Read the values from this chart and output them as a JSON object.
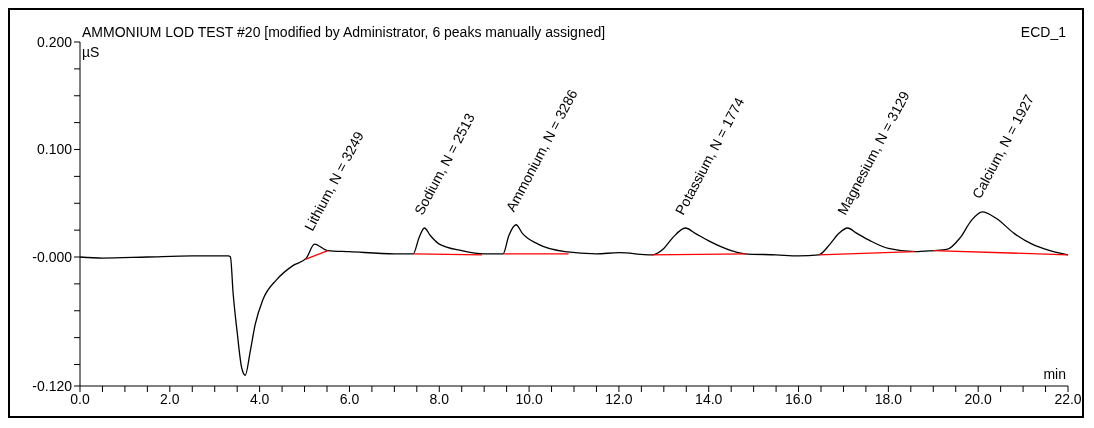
{
  "chart_data": {
    "type": "line",
    "title": "AMMONIUM LOD TEST #20 [modified by Administrator, 6 peaks manually assigned]",
    "subtitle": "ECD_1",
    "xlabel": "min",
    "ylabel": "µS",
    "xlim": [
      0,
      22
    ],
    "ylim": [
      -0.12,
      0.2
    ],
    "xticks": [
      {
        "value": 0,
        "label": "0.0"
      },
      {
        "value": 0.5,
        "label": null
      },
      {
        "value": 1,
        "label": null
      },
      {
        "value": 1.5,
        "label": null
      },
      {
        "value": 2,
        "label": "2.0"
      },
      {
        "value": 2.5,
        "label": null
      },
      {
        "value": 3,
        "label": null
      },
      {
        "value": 3.5,
        "label": null
      },
      {
        "value": 4,
        "label": "4.0"
      },
      {
        "value": 4.5,
        "label": null
      },
      {
        "value": 5,
        "label": null
      },
      {
        "value": 5.5,
        "label": null
      },
      {
        "value": 6,
        "label": "6.0"
      },
      {
        "value": 6.5,
        "label": null
      },
      {
        "value": 7,
        "label": null
      },
      {
        "value": 7.5,
        "label": null
      },
      {
        "value": 8,
        "label": "8.0"
      },
      {
        "value": 8.5,
        "label": null
      },
      {
        "value": 9,
        "label": null
      },
      {
        "value": 9.5,
        "label": null
      },
      {
        "value": 10,
        "label": "10.0"
      },
      {
        "value": 10.5,
        "label": null
      },
      {
        "value": 11,
        "label": null
      },
      {
        "value": 11.5,
        "label": null
      },
      {
        "value": 12,
        "label": "12.0"
      },
      {
        "value": 12.5,
        "label": null
      },
      {
        "value": 13,
        "label": null
      },
      {
        "value": 13.5,
        "label": null
      },
      {
        "value": 14,
        "label": "14.0"
      },
      {
        "value": 14.5,
        "label": null
      },
      {
        "value": 15,
        "label": null
      },
      {
        "value": 15.5,
        "label": null
      },
      {
        "value": 16,
        "label": "16.0"
      },
      {
        "value": 16.5,
        "label": null
      },
      {
        "value": 17,
        "label": null
      },
      {
        "value": 17.5,
        "label": null
      },
      {
        "value": 18,
        "label": "18.0"
      },
      {
        "value": 18.5,
        "label": null
      },
      {
        "value": 19,
        "label": null
      },
      {
        "value": 19.5,
        "label": null
      },
      {
        "value": 20,
        "label": "20.0"
      },
      {
        "value": 20.5,
        "label": null
      },
      {
        "value": 21,
        "label": null
      },
      {
        "value": 21.5,
        "label": null
      },
      {
        "value": 22,
        "label": "22.0"
      }
    ],
    "yticks": [
      {
        "value": -0.12,
        "label": "-0.120"
      },
      {
        "value": -0.1,
        "label": null
      },
      {
        "value": -0.075,
        "label": null
      },
      {
        "value": -0.05,
        "label": null
      },
      {
        "value": -0.025,
        "label": null
      },
      {
        "value": 0,
        "label": "-0.000"
      },
      {
        "value": 0.025,
        "label": null
      },
      {
        "value": 0.05,
        "label": null
      },
      {
        "value": 0.075,
        "label": null
      },
      {
        "value": 0.1,
        "label": "0.100"
      },
      {
        "value": 0.125,
        "label": null
      },
      {
        "value": 0.15,
        "label": null
      },
      {
        "value": 0.175,
        "label": null
      },
      {
        "value": 0.2,
        "label": "0.200"
      }
    ],
    "marker": "none",
    "line_style": "solid",
    "series": [
      {
        "color": "#000000",
        "x": [
          0,
          0.5,
          1.5,
          2.5,
          3.3,
          3.35,
          3.41,
          3.5,
          3.6,
          3.68,
          3.79,
          3.9,
          4.07,
          4.38,
          4.74,
          5.04,
          5.22,
          5.51,
          6.0,
          7.0,
          7.42,
          7.55,
          7.67,
          7.8,
          8.0,
          8.5,
          9.0,
          9.42,
          9.55,
          9.71,
          9.85,
          10.2,
          10.8,
          11.5,
          12.0,
          12.72,
          13.0,
          13.2,
          13.48,
          13.7,
          14.0,
          14.5,
          14.8,
          15.5,
          16.0,
          16.45,
          16.7,
          16.9,
          17.09,
          17.3,
          17.6,
          18.0,
          18.6,
          19.0,
          19.3,
          19.6,
          19.85,
          20.09,
          20.4,
          20.8,
          21.2,
          21.6,
          22.0
        ],
        "values": [
          0,
          -0.001,
          0,
          0.001,
          0.001,
          0,
          -0.034,
          -0.07,
          -0.103,
          -0.11,
          -0.088,
          -0.063,
          -0.04,
          -0.021,
          -0.008,
          -0.001,
          0.012,
          0.006,
          0.005,
          0.003,
          0.003,
          0.018,
          0.027,
          0.02,
          0.012,
          0.006,
          0.003,
          0.003,
          0.02,
          0.03,
          0.022,
          0.012,
          0.005,
          0.003,
          0.004,
          0.002,
          0.008,
          0.018,
          0.027,
          0.022,
          0.015,
          0.006,
          0.003,
          0.002,
          0.001,
          0.002,
          0.012,
          0.022,
          0.027,
          0.022,
          0.015,
          0.008,
          0.005,
          0.006,
          0.007,
          0.018,
          0.034,
          0.042,
          0.036,
          0.022,
          0.012,
          0.006,
          0.002
        ]
      },
      {
        "color": "#ff0000",
        "x": [
          5.03,
          5.52,
          6.0,
          7.42,
          8.95,
          9.0,
          9.42,
          10.88,
          11.0,
          12.72,
          14.82,
          15.0,
          16.45,
          18.58,
          18.8,
          19.0,
          22.0
        ],
        "values": [
          -0.002,
          0.006,
          null,
          0.003,
          0.002,
          null,
          0.003,
          0.003,
          null,
          0.002,
          0.003,
          null,
          0.002,
          0.005,
          null,
          0.006,
          0.002
        ]
      }
    ],
    "annotations": [
      {
        "text": "Lithium, N = 3249",
        "x": 5.22,
        "y": 0.012
      },
      {
        "text": "Sodium, N = 2513",
        "x": 7.67,
        "y": 0.027
      },
      {
        "text": "Ammonium, N = 3286",
        "x": 9.71,
        "y": 0.03
      },
      {
        "text": "Potassium, N = 1774",
        "x": 13.48,
        "y": 0.027
      },
      {
        "text": "Magnesium, N = 3129",
        "x": 17.09,
        "y": 0.027
      },
      {
        "text": "Calcium, N = 1927",
        "x": 20.09,
        "y": 0.042
      }
    ]
  }
}
